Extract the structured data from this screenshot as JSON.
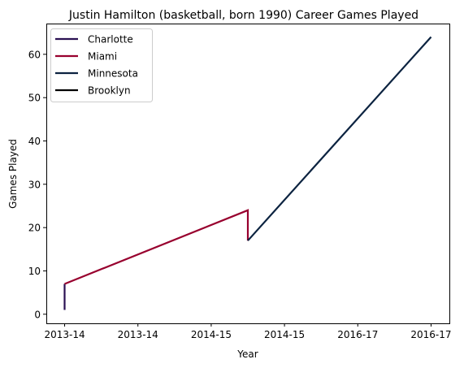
{
  "chart_data": {
    "type": "line",
    "title": "Justin Hamilton (basketball, born 1990) Career Games Played",
    "xlabel": "Year",
    "ylabel": "Games Played",
    "x_tick_labels": [
      "2013-14",
      "2013-14",
      "2014-15",
      "2014-15",
      "2016-17",
      "2016-17"
    ],
    "y_ticks": [
      0,
      10,
      20,
      30,
      40,
      50,
      60
    ],
    "xlim": [
      -0.25,
      5.25
    ],
    "ylim": [
      -2.1,
      67.1
    ],
    "grid": false,
    "legend_position": "upper-left",
    "series": [
      {
        "name": "Charlotte",
        "color": "#2a1052",
        "x": [
          0,
          0
        ],
        "y": [
          1,
          7
        ]
      },
      {
        "name": "Miami",
        "color": "#98002e",
        "x": [
          0,
          2.5,
          2.5
        ],
        "y": [
          7,
          24,
          17
        ]
      },
      {
        "name": "Minnesota",
        "color": "#0c2340",
        "x": [
          2.5,
          5
        ],
        "y": [
          17,
          64
        ]
      },
      {
        "name": "Brooklyn",
        "color": "#000000",
        "x": [],
        "y": []
      }
    ]
  }
}
